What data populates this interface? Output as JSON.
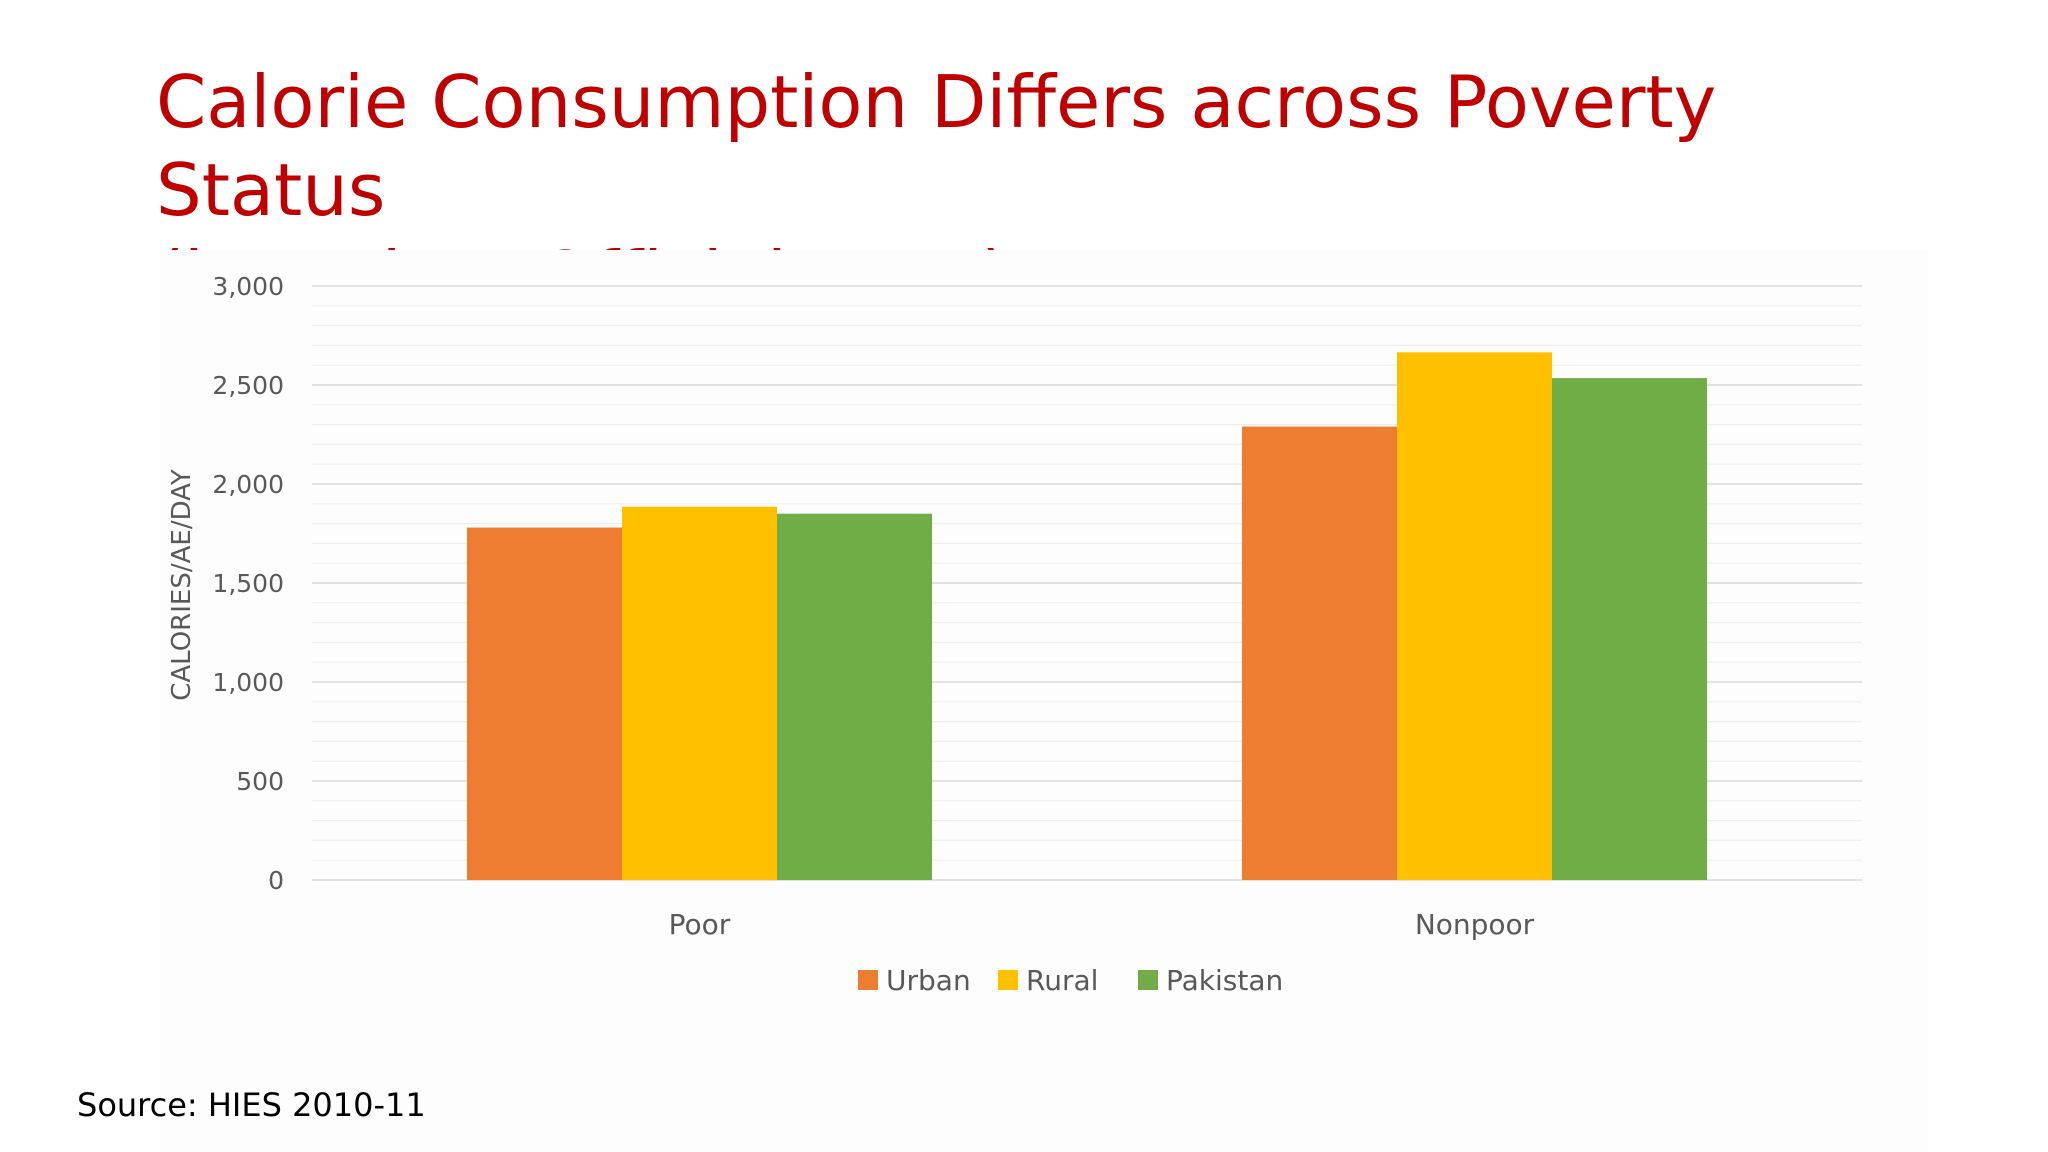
{
  "slide": {
    "title_line1": "Calorie Consumption Differs across Poverty Status",
    "title_line2": "(based on Official Data)",
    "source": "Source: HIES 2010-11",
    "title_color": "#c00000"
  },
  "chart_data": {
    "type": "bar",
    "categories": [
      "Poor",
      "Nonpoor"
    ],
    "series": [
      {
        "name": "Urban",
        "values": [
          1780,
          2290
        ],
        "color": "#ed7d31"
      },
      {
        "name": "Rural",
        "values": [
          1885,
          2665
        ],
        "color": "#ffc000"
      },
      {
        "name": "Pakistan",
        "values": [
          1850,
          2535
        ],
        "color": "#70ad47"
      }
    ],
    "xlabel": "",
    "ylabel": "CALORIES/AE/DAY",
    "ylim": [
      0,
      3000
    ],
    "yticks": [
      0,
      500,
      1000,
      1500,
      2000,
      2500,
      3000
    ],
    "ytick_labels": [
      "0",
      "500",
      "1,000",
      "1,500",
      "2,000",
      "2,500",
      "3,000"
    ],
    "grid": true,
    "legend_position": "bottom"
  }
}
